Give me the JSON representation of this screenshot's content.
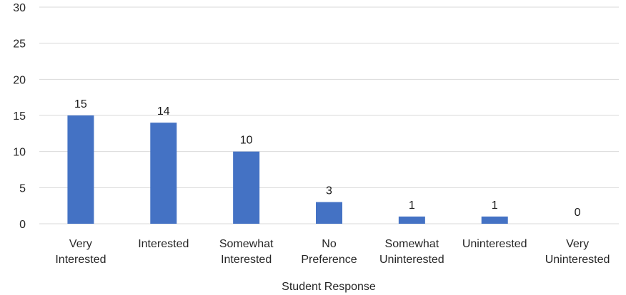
{
  "chart_data": {
    "type": "bar",
    "categories": [
      [
        "Very",
        "Interested"
      ],
      [
        "Interested"
      ],
      [
        "Somewhat",
        "Interested"
      ],
      [
        "No",
        "Preference"
      ],
      [
        "Somewhat",
        "Uninterested"
      ],
      [
        "Uninterested"
      ],
      [
        "Very",
        "Uninterested"
      ]
    ],
    "values": [
      15,
      14,
      10,
      3,
      1,
      1,
      0
    ],
    "value_labels": [
      "15",
      "14",
      "10",
      "3",
      "1",
      "1",
      "0"
    ],
    "y_ticks": [
      "0",
      "5",
      "10",
      "15",
      "20",
      "25",
      "30"
    ],
    "ylim": [
      0,
      30
    ],
    "xlabel": "Student Response",
    "ylabel": "",
    "title": "",
    "grid": true,
    "legend": "none",
    "bar_color": "#4472C4",
    "grid_color": "#d9d9d9"
  }
}
